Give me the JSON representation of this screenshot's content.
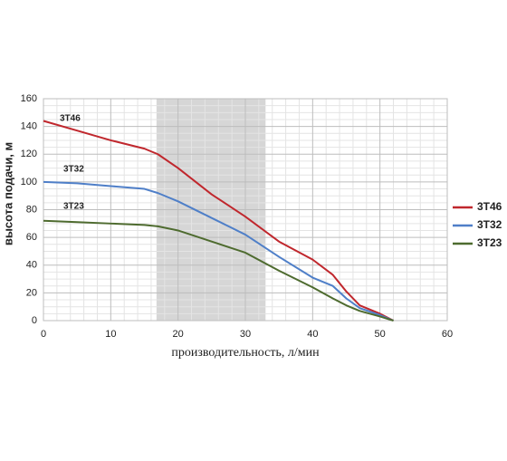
{
  "chart_data": {
    "type": "line",
    "x_label": "производительность, л/мин",
    "y_label": "высота подачи, м",
    "x": [
      0,
      5,
      10,
      15,
      17,
      20,
      25,
      30,
      35,
      40,
      43,
      45,
      47,
      50,
      52
    ],
    "series": [
      {
        "name": "3T46",
        "color": "#c0272d",
        "values": [
          144,
          137,
          130,
          124,
          120,
          110,
          91,
          75,
          57,
          44,
          33,
          21,
          11,
          5,
          0
        ]
      },
      {
        "name": "3T32",
        "color": "#4f7fc8",
        "values": [
          100,
          99,
          97,
          95,
          92,
          86,
          74,
          62,
          46,
          31,
          25,
          16,
          9,
          4,
          0
        ]
      },
      {
        "name": "3T23",
        "color": "#4e6b2f",
        "values": [
          72,
          71,
          70,
          69,
          68,
          65,
          57,
          49,
          36,
          24,
          16,
          11,
          7,
          3,
          0
        ]
      }
    ],
    "annotations": [
      "3T46",
      "3T32",
      "3T23"
    ],
    "xlim": [
      0,
      60
    ],
    "xticks": [
      0,
      10,
      20,
      30,
      40,
      50,
      60
    ],
    "ylim": [
      0,
      160
    ],
    "yticks": [
      0,
      20,
      40,
      60,
      80,
      100,
      120,
      140,
      160
    ],
    "minor_grid": {
      "x": [
        2,
        4,
        6,
        8,
        12,
        14,
        16,
        18,
        22,
        24,
        26,
        28,
        32,
        34,
        36,
        38,
        42,
        44,
        46,
        48,
        52,
        54,
        56,
        58
      ],
      "y": [
        5,
        10,
        15,
        25,
        30,
        35,
        45,
        50,
        55,
        65,
        70,
        75,
        85,
        90,
        95,
        105,
        110,
        115,
        125,
        130,
        135,
        145,
        150,
        155
      ]
    },
    "shaded_range": [
      16.8,
      33
    ],
    "grid": true,
    "legend": "right"
  }
}
